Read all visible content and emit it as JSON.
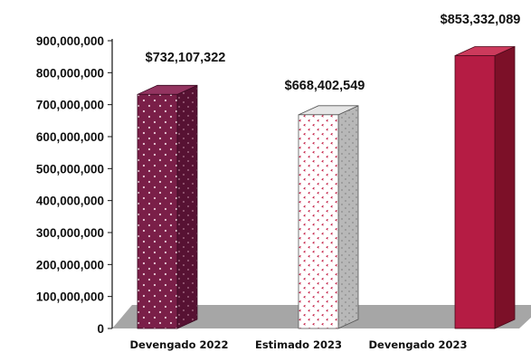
{
  "chart_data": {
    "type": "bar",
    "categories": [
      "Devengado 2022",
      "Estimado 2023",
      "Devengado 2023"
    ],
    "values": [
      732107322,
      668402549,
      853332089
    ],
    "data_labels": [
      "$732,107,322",
      "$668,402,549",
      "$853,332,089"
    ],
    "y_ticks": [
      0,
      100000000,
      200000000,
      300000000,
      400000000,
      500000000,
      600000000,
      700000000,
      800000000,
      900000000
    ],
    "y_tick_labels": [
      "0",
      "100,000,000",
      "200,000,000",
      "300,000,000",
      "400,000,000",
      "500,000,000",
      "600,000,000",
      "700,000,000",
      "800,000,000",
      "900,000,000"
    ],
    "ylim": [
      0,
      900000000
    ],
    "title": "",
    "xlabel": "",
    "ylabel": "",
    "grid": false,
    "style": "3d-columns",
    "colors": {
      "bar1_front": "#7a1f48",
      "bar1_side": "#571233",
      "bar1_top": "#933460",
      "bar1_dots": "#e8c9d6",
      "bar2_front": "#ffffff",
      "bar2_side": "#b8b8b8",
      "bar2_top": "#e6e6e6",
      "bar2_marks": "#c0143c",
      "bar3_front": "#b51c44",
      "bar3_side": "#7c1028",
      "bar3_top": "#cc3a5c",
      "floor": "#a6a6a6",
      "axis": "#111111"
    }
  }
}
